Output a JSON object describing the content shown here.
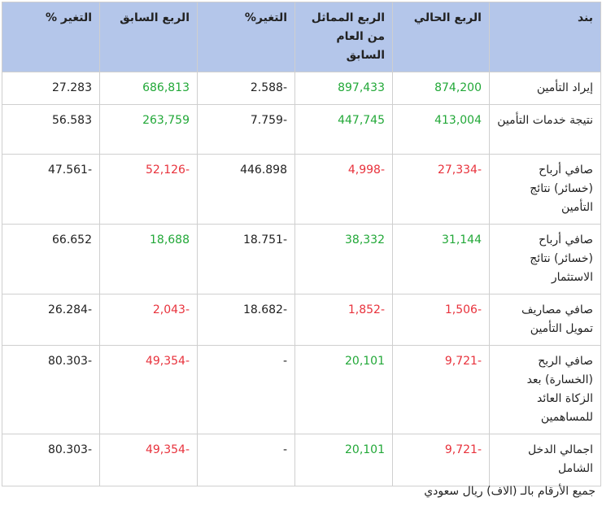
{
  "table": {
    "headers": [
      "بند",
      "الربع الحالي",
      "الربع المماثل من العام السابق",
      "التغير%",
      "الربع السابق",
      "التغير %"
    ],
    "rows": [
      {
        "cells": [
          "إيراد التأمين",
          "874,200",
          "897,433",
          "2.588-",
          "686,813",
          "27.283"
        ],
        "colors": [
          "#222",
          "#22a838",
          "#22a838",
          "#222",
          "#22a838",
          "#222"
        ]
      },
      {
        "cells": [
          "نتيجة خدمات التأمين",
          "413,004",
          "447,745",
          "7.759-",
          "263,759",
          "56.583"
        ],
        "colors": [
          "#222",
          "#22a838",
          "#22a838",
          "#222",
          "#22a838",
          "#222"
        ]
      },
      {
        "cells": [
          "صافي أرباح (خسائر) نتائج التأمين",
          "27,334-",
          "4,998-",
          "446.898",
          "52,126-",
          "47.561-"
        ],
        "colors": [
          "#222",
          "#e8323c",
          "#e8323c",
          "#222",
          "#e8323c",
          "#222"
        ]
      },
      {
        "cells": [
          "صافي أرباح (خسائر) نتائج الاستثمار",
          "31,144",
          "38,332",
          "18.751-",
          "18,688",
          "66.652"
        ],
        "colors": [
          "#222",
          "#22a838",
          "#22a838",
          "#222",
          "#22a838",
          "#222"
        ]
      },
      {
        "cells": [
          "صافي مصاريف تمويل التأمين",
          "1,506-",
          "1,852-",
          "18.682-",
          "2,043-",
          "26.284-"
        ],
        "colors": [
          "#222",
          "#e8323c",
          "#e8323c",
          "#222",
          "#e8323c",
          "#222"
        ]
      },
      {
        "cells": [
          "صافي الربح (الخسارة) بعد الزكاة العائد للمساهمين",
          "9,721-",
          "20,101",
          "-",
          "49,354-",
          "80.303-"
        ],
        "colors": [
          "#222",
          "#e8323c",
          "#22a838",
          "#222",
          "#e8323c",
          "#222"
        ]
      },
      {
        "cells": [
          "اجمالي الدخل الشامل",
          "9,721-",
          "20,101",
          "-",
          "49,354-",
          "80.303-"
        ],
        "colors": [
          "#222",
          "#e8323c",
          "#22a838",
          "#222",
          "#e8323c",
          "#222"
        ]
      }
    ],
    "header_color": "#b4c6ea"
  },
  "footnote": "جميع الأرقام بالـ (الاف) ريال سعودي"
}
